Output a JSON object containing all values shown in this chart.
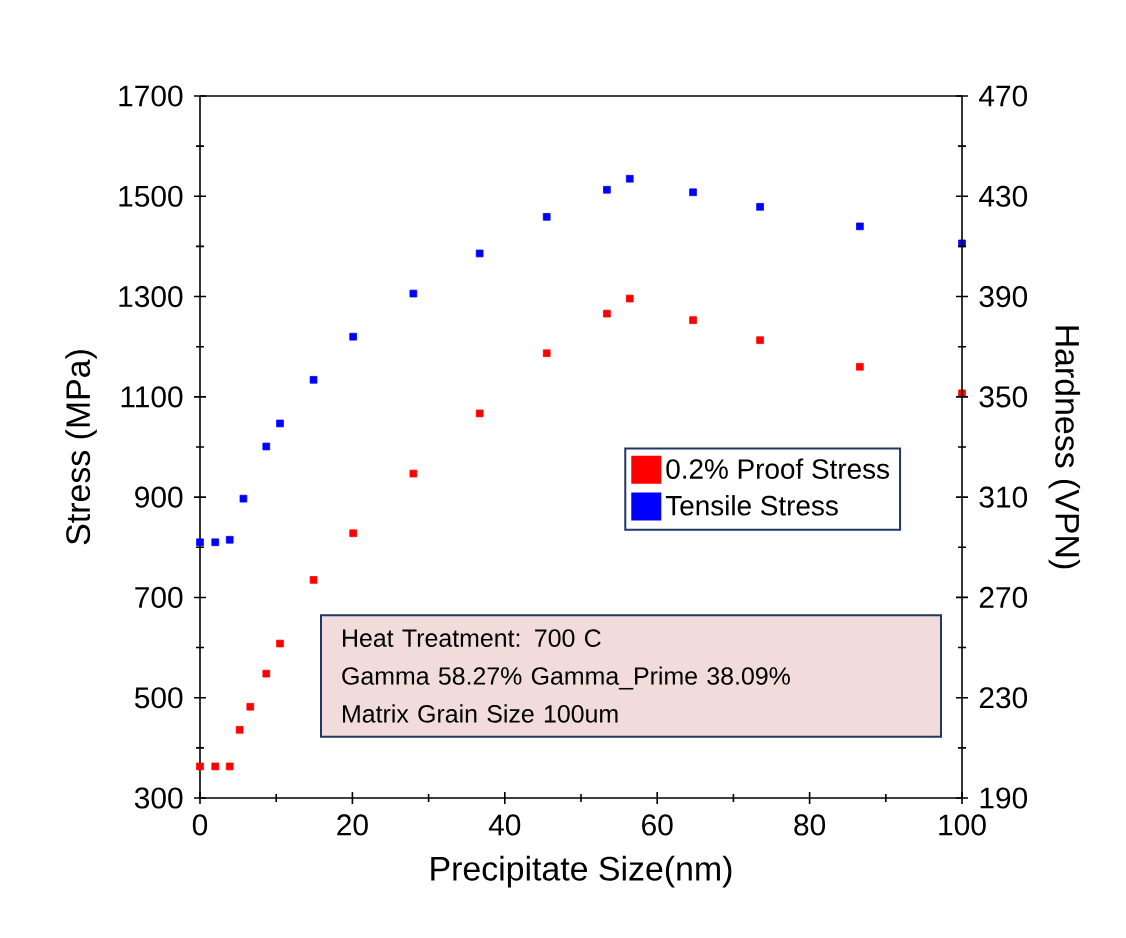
{
  "chart_data": {
    "type": "scatter",
    "xlabel": "Precipitate Size(nm)",
    "ylabel": "Stress (MPa)",
    "y2label": "Hardness (VPN)",
    "xlim": [
      0,
      100
    ],
    "xticks": [
      0,
      20,
      40,
      60,
      80,
      100
    ],
    "ylim": [
      300,
      1700
    ],
    "yticks": [
      300,
      500,
      700,
      900,
      1100,
      1300,
      1500,
      1700
    ],
    "y2lim": [
      190,
      470
    ],
    "y2ticks": [
      190,
      230,
      270,
      310,
      350,
      390,
      430,
      470
    ],
    "marker": "square",
    "line_style": "none",
    "legend": "right",
    "grid": false,
    "series": [
      {
        "name": "0.2% Proof Stress",
        "color": "#ff0000",
        "x": [
          0,
          2,
          3.9,
          5.2,
          6.6,
          8.7,
          10.5,
          14.9,
          20.1,
          28,
          36.7,
          45.5,
          53.4,
          56.4,
          64.7,
          73.5,
          86.6,
          100
        ],
        "values": [
          363,
          363,
          363,
          436,
          482,
          548,
          608,
          735,
          828,
          947,
          1067,
          1187,
          1266,
          1296,
          1253,
          1213,
          1160,
          1107
        ]
      },
      {
        "name": "Tensile Stress",
        "color": "#0000ff",
        "x": [
          0,
          2,
          3.9,
          5.7,
          8.7,
          10.5,
          14.9,
          20.1,
          28,
          36.7,
          45.5,
          53.4,
          56.4,
          64.7,
          73.5,
          86.6,
          100
        ],
        "values": [
          810,
          810,
          815,
          897,
          1001,
          1047,
          1134,
          1220,
          1306,
          1386,
          1459,
          1513,
          1535,
          1508,
          1479,
          1440,
          1406
        ]
      }
    ],
    "annotations": [
      "Heat Treatment: 700 C",
      "Gamma 58.27% Gamma_Prime 38.09%",
      "Matrix Grain Size 100um"
    ]
  }
}
